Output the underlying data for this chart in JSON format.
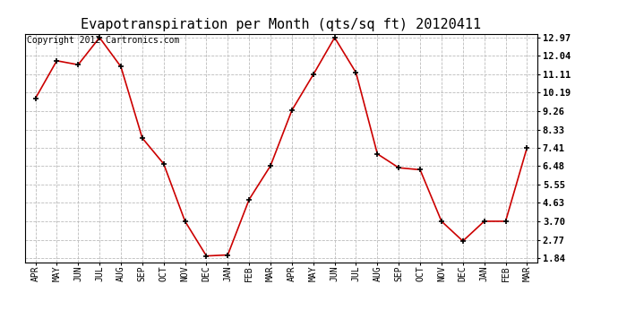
{
  "title": "Evapotranspiration per Month (qts/sq ft) 20120411",
  "copyright": "Copyright 2012 Cartronics.com",
  "x_labels": [
    "APR",
    "MAY",
    "JUN",
    "JUL",
    "AUG",
    "SEP",
    "OCT",
    "NOV",
    "DEC",
    "JAN",
    "FEB",
    "MAR",
    "APR",
    "MAY",
    "JUN",
    "JUL",
    "AUG",
    "SEP",
    "OCT",
    "NOV",
    "DEC",
    "JAN",
    "FEB",
    "MAR"
  ],
  "y_values": [
    9.9,
    11.8,
    11.6,
    12.97,
    11.5,
    7.9,
    6.6,
    3.7,
    1.95,
    2.0,
    4.8,
    6.5,
    9.3,
    11.1,
    12.97,
    11.2,
    7.1,
    6.4,
    6.3,
    3.7,
    2.7,
    3.7,
    3.7,
    7.41
  ],
  "y_ticks": [
    1.84,
    2.77,
    3.7,
    4.63,
    5.55,
    6.48,
    7.41,
    8.33,
    9.26,
    10.19,
    11.11,
    12.04,
    12.97
  ],
  "line_color": "#cc0000",
  "marker_color": "#cc0000",
  "bg_color": "#ffffff",
  "grid_color": "#bbbbbb",
  "title_fontsize": 11,
  "copyright_fontsize": 7
}
